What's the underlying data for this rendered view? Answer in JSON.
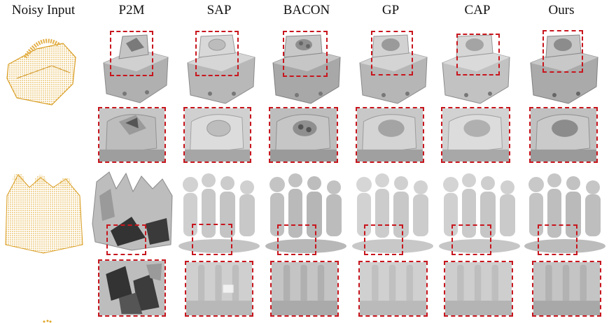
{
  "columns": [
    {
      "key": "noisy",
      "label": "Noisy Input"
    },
    {
      "key": "p2m",
      "label": "P2M"
    },
    {
      "key": "sap",
      "label": "SAP"
    },
    {
      "key": "bacon",
      "label": "BACON"
    },
    {
      "key": "gp",
      "label": "GP"
    },
    {
      "key": "cap",
      "label": "CAP"
    },
    {
      "key": "ours",
      "label": "Ours"
    }
  ],
  "colors": {
    "highlight": "#c8161e",
    "point_cloud": "#e0a526",
    "mesh": "#b8b8b8"
  }
}
